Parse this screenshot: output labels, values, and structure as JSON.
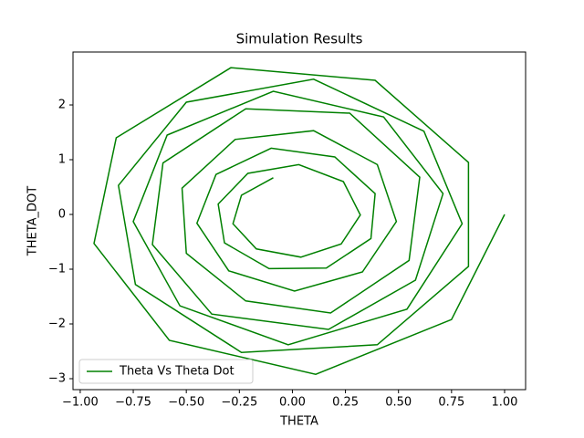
{
  "chart_data": {
    "type": "line",
    "title": "Simulation Results",
    "x_label": "THETA",
    "y_label": "THETA_DOT",
    "legend_position": "lower left",
    "xlim": [
      -1.034,
      1.099
    ],
    "ylim": [
      -3.2,
      2.967
    ],
    "xticks": [
      {
        "value": -1,
        "label": "−1.00"
      },
      {
        "value": -0.75,
        "label": "−0.75"
      },
      {
        "value": -0.5,
        "label": "−0.50"
      },
      {
        "value": -0.25,
        "label": "−0.25"
      },
      {
        "value": 0,
        "label": "0.00"
      },
      {
        "value": 0.25,
        "label": "0.25"
      },
      {
        "value": 0.5,
        "label": "0.50"
      },
      {
        "value": 0.75,
        "label": "0.75"
      },
      {
        "value": 1,
        "label": "1.00"
      }
    ],
    "yticks": [
      {
        "value": -3,
        "label": "−3"
      },
      {
        "value": -2,
        "label": "−2"
      },
      {
        "value": -1,
        "label": "−1"
      },
      0,
      1,
      2
    ],
    "series": [
      {
        "name": "Theta Vs Theta Dot",
        "color": "#008000",
        "x": [
          1.0,
          0.75,
          0.11,
          -0.58,
          -0.935,
          -0.83,
          -0.29,
          0.39,
          0.83,
          0.83,
          0.4,
          -0.24,
          -0.74,
          -0.82,
          -0.5,
          0.1,
          0.62,
          0.8,
          0.54,
          -0.02,
          -0.53,
          -0.75,
          -0.59,
          -0.09,
          0.43,
          0.71,
          0.58,
          0.17,
          -0.38,
          -0.66,
          -0.61,
          -0.22,
          0.27,
          0.6,
          0.55,
          0.18,
          -0.22,
          -0.5,
          -0.52,
          -0.27,
          0.1,
          0.4,
          0.49,
          0.33,
          0.01,
          -0.3,
          -0.45,
          -0.36,
          -0.1,
          0.2,
          0.39,
          0.37,
          0.16,
          -0.11,
          -0.32,
          -0.35,
          -0.21,
          0.03,
          0.24,
          0.32,
          0.23,
          0.04,
          -0.17,
          -0.28,
          -0.24,
          -0.09
        ],
        "values": [
          0,
          -1.92,
          -2.92,
          -2.3,
          -0.53,
          1.4,
          2.68,
          2.45,
          0.95,
          -0.95,
          -2.38,
          -2.52,
          -1.28,
          0.53,
          2.05,
          2.47,
          1.52,
          -0.17,
          -1.73,
          -2.38,
          -1.67,
          -0.13,
          1.45,
          2.25,
          1.78,
          0.38,
          -1.2,
          -2.1,
          -1.82,
          -0.55,
          0.94,
          1.93,
          1.85,
          0.68,
          -0.84,
          -1.8,
          -1.58,
          -0.71,
          0.48,
          1.37,
          1.53,
          0.91,
          -0.13,
          -1.05,
          -1.4,
          -1.03,
          -0.16,
          0.73,
          1.21,
          1.05,
          0.38,
          -0.44,
          -0.98,
          -0.99,
          -0.52,
          0.19,
          0.75,
          0.91,
          0.6,
          -0.01,
          -0.54,
          -0.78,
          -0.63,
          -0.17,
          0.35,
          0.67
        ]
      }
    ]
  }
}
